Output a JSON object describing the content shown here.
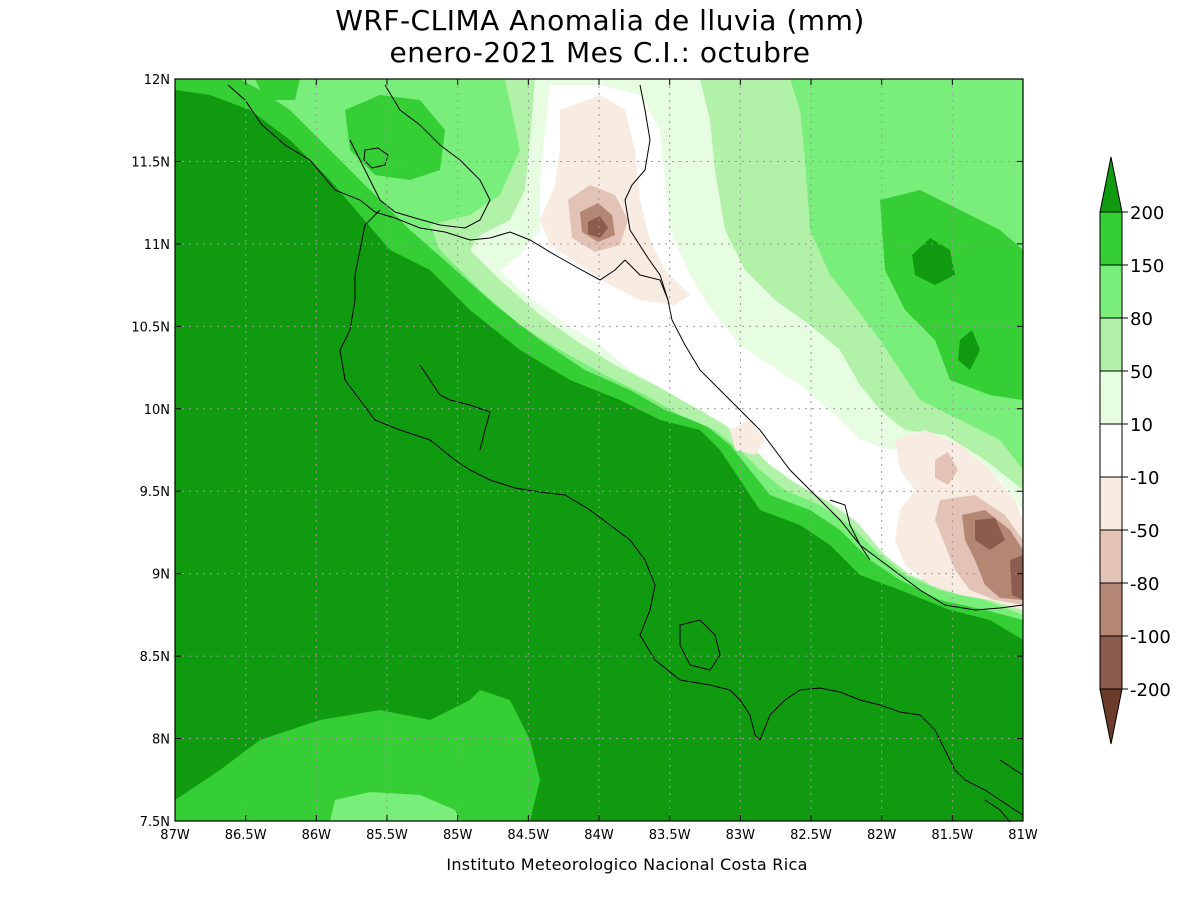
{
  "title": {
    "line1": "WRF-CLIMA Anomalia de lluvia (mm)",
    "line2": "enero-2021 Mes C.I.: octubre"
  },
  "credit": "Instituto Meteorologico Nacional Costa Rica",
  "axes": {
    "x_ticks": [
      "87W",
      "86.5W",
      "86W",
      "85.5W",
      "85W",
      "84.5W",
      "84W",
      "83.5W",
      "83W",
      "82.5W",
      "82W",
      "81.5W",
      "81W"
    ],
    "y_ticks": [
      "12N",
      "11.5N",
      "11N",
      "10.5N",
      "10N",
      "9.5N",
      "9N",
      "8.5N",
      "8N",
      "7.5N"
    ],
    "lon_range": [
      -87,
      -81
    ],
    "lat_range": [
      7.5,
      12
    ]
  },
  "legend": {
    "labels": [
      "200",
      "150",
      "80",
      "50",
      "10",
      "-10",
      "-50",
      "-80",
      "-100",
      "-200"
    ],
    "colors": [
      "#109a10",
      "#35ce35",
      "#7aee7a",
      "#b2f2a8",
      "#e6fde2",
      "#ffffff",
      "#f7ebe2",
      "#e2c3b6",
      "#b48674",
      "#8c5c4c",
      "#6b3c2c"
    ]
  },
  "colors": {
    "deep_green": "#109a10",
    "mid_green": "#35ce35",
    "light_green": "#7aee7a",
    "pale_green": "#b2f2a8",
    "very_pale_green": "#e6fde2",
    "white": "#ffffff",
    "beige": "#f7ebe2",
    "light_brown": "#e2c3b6",
    "mid_brown": "#b48674",
    "dark_brown": "#8c5c4c",
    "darkest_brown": "#6b3c2c"
  }
}
